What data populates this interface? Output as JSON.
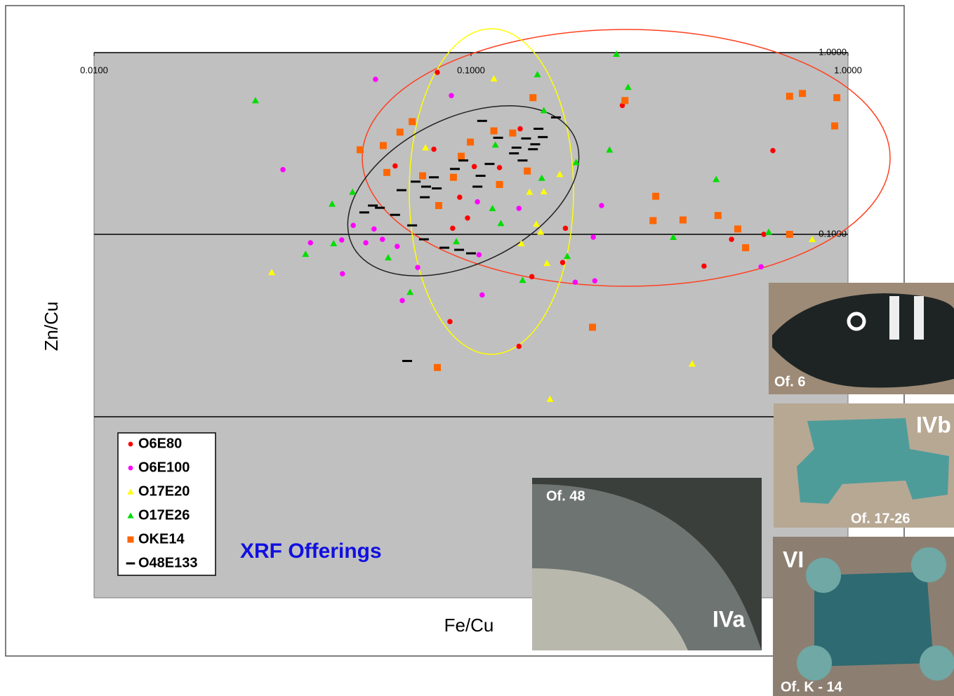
{
  "chart_data": {
    "type": "scatter",
    "x_label": "Fe/Cu",
    "y_label": "Zn/Cu",
    "annotation": "XRF Offerings",
    "log_x": true,
    "log_y": true,
    "xlim": [
      0.01,
      1
    ],
    "ylim": [
      0.001,
      1
    ],
    "xticks": [
      {
        "value": 0.01,
        "label": "0.0100"
      },
      {
        "value": 0.1,
        "label": "0.1000"
      },
      {
        "value": 1,
        "label": "1.0000"
      }
    ],
    "yticks": [
      {
        "value": 1,
        "label": "1.0000"
      },
      {
        "value": 0.1,
        "label": "0.1000"
      }
    ],
    "legend": "lower left",
    "series": [
      {
        "name": "O6E80",
        "color": "#ff0000",
        "marker": "circle",
        "x": [
          0.632,
          0.252,
          0.135,
          0.0814,
          0.0629,
          0.0797,
          0.102,
          0.119,
          0.0933,
          0.0979,
          0.0894,
          0.178,
          0.175,
          0.415,
          0.491,
          0.145,
          0.0879,
          0.134,
          0.598
        ],
        "values": [
          0.289,
          0.512,
          0.381,
          0.779,
          0.238,
          0.294,
          0.236,
          0.233,
          0.16,
          0.123,
          0.108,
          0.108,
          0.07,
          0.0669,
          0.0939,
          0.0585,
          0.0331,
          0.0242,
          0.1
        ]
      },
      {
        "name": "O6E100",
        "color": "#ff00ff",
        "marker": "circle",
        "x": [
          0.0558,
          0.0887,
          0.0317,
          0.0487,
          0.0553,
          0.0526,
          0.0375,
          0.0454,
          0.0456,
          0.0582,
          0.0637,
          0.0722,
          0.0657,
          0.107,
          0.105,
          0.104,
          0.134,
          0.222,
          0.211,
          0.189,
          0.213,
          0.588
        ],
        "values": [
          0.713,
          0.58,
          0.227,
          0.112,
          0.107,
          0.0899,
          0.0899,
          0.0931,
          0.0607,
          0.0939,
          0.0859,
          0.0657,
          0.0432,
          0.0464,
          0.0772,
          0.151,
          0.139,
          0.144,
          0.0965,
          0.0545,
          0.0555,
          0.0663
        ]
      },
      {
        "name": "O17E20",
        "color": "#ffff00",
        "marker": "triangle",
        "x": [
          0.115,
          0.0757,
          0.143,
          0.156,
          0.172,
          0.149,
          0.153,
          0.136,
          0.159,
          0.0296,
          0.386,
          0.162,
          0.804
        ],
        "values": [
          0.719,
          0.3,
          0.171,
          0.172,
          0.214,
          0.114,
          0.103,
          0.0891,
          0.0694,
          0.0618,
          0.0194,
          0.0124,
          0.0939
        ]
      },
      {
        "name": "O17E26",
        "color": "#00dd00",
        "marker": "triangle",
        "x": [
          0.0268,
          0.0485,
          0.0428,
          0.0432,
          0.0364,
          0.0603,
          0.0689,
          0.0914,
          0.114,
          0.12,
          0.116,
          0.15,
          0.156,
          0.154,
          0.19,
          0.233,
          0.243,
          0.261,
          0.344,
          0.447,
          0.616,
          0.18,
          0.137
        ],
        "values": [
          0.545,
          0.171,
          0.147,
          0.0891,
          0.0779,
          0.0745,
          0.0481,
          0.0914,
          0.139,
          0.115,
          0.311,
          0.758,
          0.481,
          0.204,
          0.249,
          0.292,
          0.982,
          0.646,
          0.0965,
          0.201,
          0.103,
          0.0758,
          0.056
        ]
      },
      {
        "name": "OKE14",
        "color": "#ff6600",
        "marker": "square",
        "x": [
          0.0508,
          0.0585,
          0.0648,
          0.0698,
          0.0598,
          0.0744,
          0.0821,
          0.0898,
          0.0942,
          0.0996,
          0.119,
          0.115,
          0.129,
          0.141,
          0.146,
          0.256,
          0.309,
          0.304,
          0.365,
          0.452,
          0.51,
          0.535,
          0.7,
          0.7,
          0.757,
          0.934,
          0.922,
          0.21,
          0.0814
        ],
        "values": [
          0.292,
          0.308,
          0.365,
          0.417,
          0.219,
          0.21,
          0.144,
          0.206,
          0.269,
          0.322,
          0.188,
          0.371,
          0.361,
          0.223,
          0.565,
          0.545,
          0.162,
          0.119,
          0.12,
          0.127,
          0.107,
          0.0844,
          0.1,
          0.575,
          0.596,
          0.565,
          0.395,
          0.0308,
          0.0185
        ]
      },
      {
        "name": "O48E133",
        "color": "#000000",
        "marker": "dash",
        "x": [
          0.168,
          0.151,
          0.155,
          0.148,
          0.146,
          0.132,
          0.13,
          0.137,
          0.112,
          0.106,
          0.104,
          0.0954,
          0.0906,
          0.0797,
          0.076,
          0.0811,
          0.0754,
          0.0713,
          0.0654,
          0.0573,
          0.0549,
          0.0521,
          0.0629,
          0.0698,
          0.075,
          0.085,
          0.093,
          0.1,
          0.107,
          0.0677,
          0.118,
          0.14
        ],
        "values": [
          0.44,
          0.381,
          0.343,
          0.313,
          0.294,
          0.3,
          0.279,
          0.255,
          0.244,
          0.21,
          0.183,
          0.255,
          0.229,
          0.206,
          0.183,
          0.179,
          0.16,
          0.195,
          0.175,
          0.14,
          0.144,
          0.132,
          0.128,
          0.112,
          0.0939,
          0.0844,
          0.0822,
          0.0786,
          0.421,
          0.0201,
          0.34,
          0.337
        ]
      }
    ]
  },
  "photos": [
    {
      "labels": [
        "Of. 6"
      ]
    },
    {
      "labels": [
        "Of. 48",
        "IVa"
      ]
    },
    {
      "labels": [
        "IVb",
        "Of. 17-26"
      ]
    },
    {
      "labels": [
        "VI",
        "Of. K - 14"
      ]
    }
  ]
}
